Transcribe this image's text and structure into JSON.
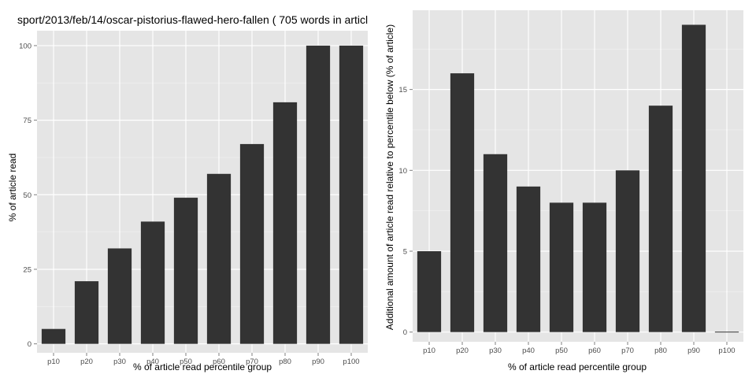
{
  "chart_data": [
    {
      "type": "bar",
      "title": "sport/2013/feb/14/oscar-pistorius-flawed-hero-fallen ( 705 words in articl",
      "xlabel": "% of article read percentile group",
      "ylabel": "% of article read",
      "categories": [
        "p10",
        "p20",
        "p30",
        "p40",
        "p50",
        "p60",
        "p70",
        "p80",
        "p90",
        "p100"
      ],
      "values": [
        5,
        21,
        32,
        41,
        49,
        57,
        67,
        81,
        100,
        100
      ],
      "ylim": [
        -3,
        105
      ],
      "yticks": [
        0,
        25,
        50,
        75,
        100
      ],
      "bar_color": "#333333",
      "panel_background": "#e5e5e5",
      "grid": true
    },
    {
      "type": "bar",
      "title": "",
      "xlabel": "% of article read percentile group",
      "ylabel": "Additional amount of article read relative to percentile below (% of article)",
      "categories": [
        "p10",
        "p20",
        "p30",
        "p40",
        "p50",
        "p60",
        "p70",
        "p80",
        "p90",
        "p100"
      ],
      "values": [
        5,
        16,
        11,
        9,
        8,
        8,
        10,
        14,
        19,
        0
      ],
      "ylim": [
        -0.6,
        19.9
      ],
      "yticks": [
        0,
        5,
        10,
        15
      ],
      "bar_color": "#333333",
      "panel_background": "#e5e5e5",
      "grid": true
    }
  ]
}
